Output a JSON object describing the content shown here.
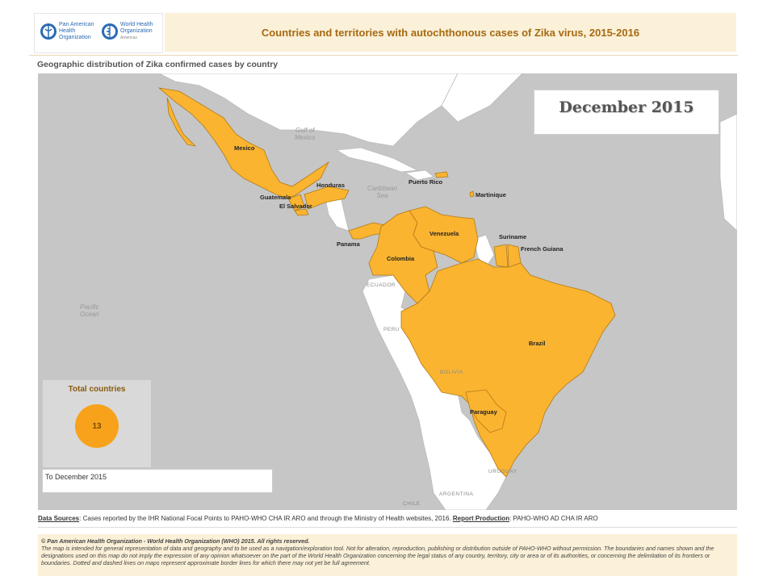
{
  "header": {
    "title": "Countries and territories with autochthonous cases of Zika virus, 2015-2016",
    "logos": [
      {
        "name": "paho-logo",
        "text": [
          "Pan American",
          "Health",
          "Organization"
        ]
      },
      {
        "name": "who-logo",
        "text": [
          "World Health",
          "Organization"
        ],
        "region": "Americas"
      }
    ]
  },
  "subtitle": "Geographic distribution of Zika confirmed cases by country",
  "map": {
    "date_label": "December 2015",
    "highlight_color": "#fbb430",
    "highlighted_countries": [
      "Mexico",
      "Guatemala",
      "El Salvador",
      "Honduras",
      "Puerto Rico",
      "Martinique",
      "Panama",
      "Colombia",
      "Venezuela",
      "Suriname",
      "French Guiana",
      "Brazil",
      "Paraguay"
    ],
    "country_labels": {
      "mexico": "Mexico",
      "guatemala": "Guatemala",
      "el_salvador": "El Salvador",
      "honduras": "Honduras",
      "puerto_rico": "Puerto Rico",
      "martinique": "Martinique",
      "panama": "Panama",
      "colombia": "Colombia",
      "venezuela": "Venezuela",
      "suriname": "Suriname",
      "french_guiana": "French Guiana",
      "brazil": "Brazil",
      "paraguay": "Paraguay"
    },
    "other_labels": {
      "ecuador": "ECUADOR",
      "peru": "PERU",
      "bolivia": "BOLIVIA",
      "uruguay": "URUGUAY",
      "argentina": "ARGENTINA",
      "chile": "CHILE"
    },
    "ocean_labels": {
      "gulf_l1": "Gulf of",
      "gulf_l2": "Mexico",
      "carib_l1": "Caribbean",
      "carib_l2": "Sea",
      "pacific_l1": "Pacific",
      "pacific_l2": "Ocean"
    }
  },
  "summary": {
    "title": "Total countries",
    "count": "13",
    "period": "To December 2015"
  },
  "sources": {
    "label": "Data Sources",
    "text": ": Cases reported by the IHR National Focal Points to PAHO-WHO CHA IR ARO and through the Ministry of Health websites, 2016. ",
    "production_label": "Report Production",
    "production_text": ": PAHO-WHO AD CHA IR ARO"
  },
  "footer": {
    "copyright": "© Pan American Health Organization - World Health Organization (WHO) 2015. All rights reserved.",
    "disclaimer": "The map is intended for general representation of data and geography and to be used as a navigation/exploration tool. Not for alteration, reproduction, publishing or distribution outside of PAHO-WHO without permission. The boundaries and names shown and the designations used on this map do not imply the expression of any opinion whatsoever on the part of the World Health Organization concerning the legal status of any country, territory, city or area or of its authorities, or concerning the delimitation of its frontiers or boundaries. Dotted and dashed lines on maps represent approximate border lines for which there may not yet be full agreement."
  }
}
